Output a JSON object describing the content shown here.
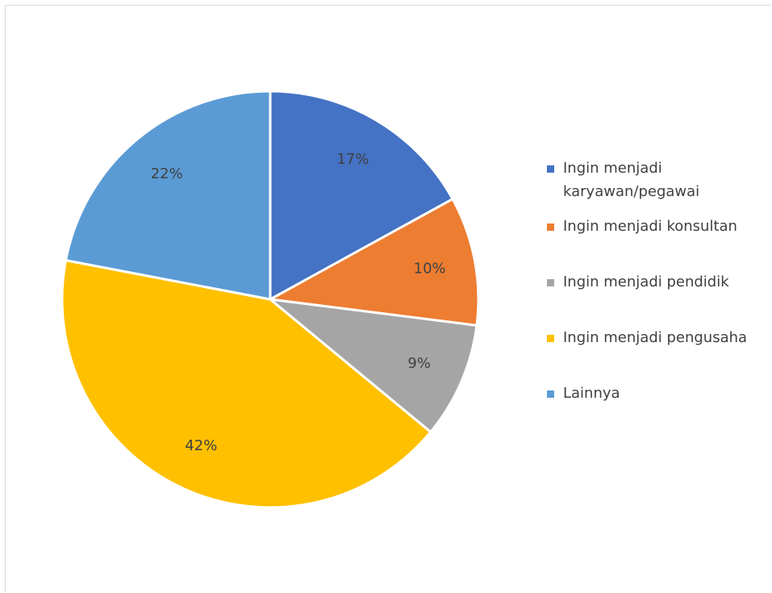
{
  "chart_data": {
    "type": "pie",
    "title": "",
    "categories": [
      "Ingin menjadi karyawan/pegawai",
      "Ingin menjadi konsultan",
      "Ingin menjadi pendidik",
      "Ingin menjadi pengusaha",
      "Lainnya"
    ],
    "values": [
      17,
      10,
      9,
      42,
      22
    ],
    "labels": [
      "17%",
      "10%",
      "9%",
      "42%",
      "22%"
    ],
    "colors": [
      "#4472C4",
      "#ED7D31",
      "#A5A5A5",
      "#FFC000",
      "#5B9BD5"
    ],
    "legend_position": "right"
  },
  "legend": {
    "items": [
      {
        "label_line1": "Ingin menjadi",
        "label_line2": "karyawan/pegawai",
        "color": "#4472C4"
      },
      {
        "label_line1": "Ingin menjadi konsultan",
        "label_line2": "",
        "color": "#ED7D31"
      },
      {
        "label_line1": "Ingin menjadi pendidik",
        "label_line2": "",
        "color": "#A5A5A5"
      },
      {
        "label_line1": "Ingin menjadi pengusaha",
        "label_line2": "",
        "color": "#FFC000"
      },
      {
        "label_line1": "Lainnya",
        "label_line2": "",
        "color": "#5B9BD5"
      }
    ]
  }
}
